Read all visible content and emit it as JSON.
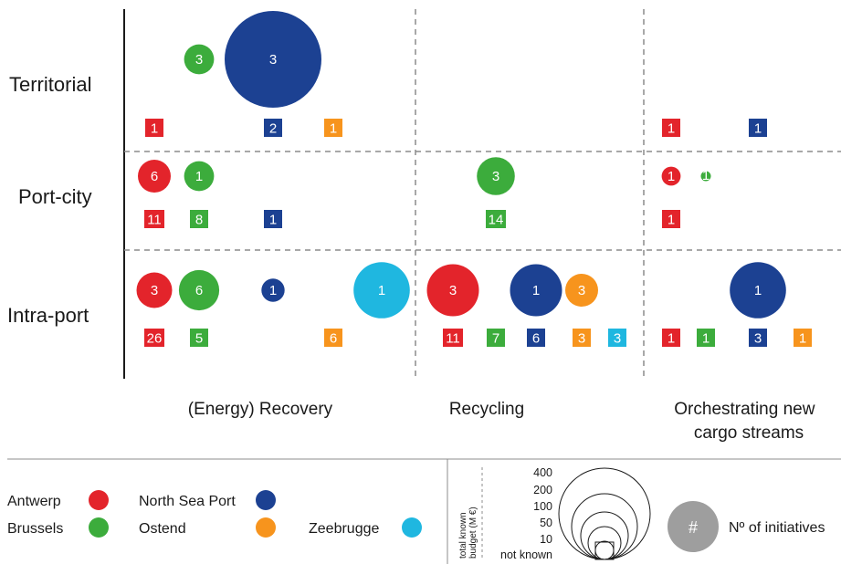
{
  "chart_data": {
    "type": "bubble-matrix",
    "rows": [
      "Territorial",
      "Port-city",
      "Intra-port"
    ],
    "columns": [
      "(Energy) Recovery",
      "Recycling",
      "Orchestrating new cargo streams"
    ],
    "ports": [
      {
        "key": "antwerp",
        "name": "Antwerp",
        "color": "#e3242b"
      },
      {
        "key": "brussels",
        "name": "Brussels",
        "color": "#3cac3c"
      },
      {
        "key": "northsea",
        "name": "North Sea Port",
        "color": "#1c4192"
      },
      {
        "key": "ostend",
        "name": "Ostend",
        "color": "#f7941d"
      },
      {
        "key": "zeebrugge",
        "name": "Zeebrugge",
        "color": "#1fb7e0"
      }
    ],
    "bubbles": [
      {
        "row": "Territorial",
        "column": "(Energy) Recovery",
        "port": "brussels",
        "label": "3",
        "budget_meur": 10
      },
      {
        "row": "Territorial",
        "column": "(Energy) Recovery",
        "port": "northsea",
        "label": "3",
        "budget_meur": 400
      },
      {
        "row": "Port-city",
        "column": "(Energy) Recovery",
        "port": "antwerp",
        "label": "6",
        "budget_meur": 12
      },
      {
        "row": "Port-city",
        "column": "(Energy) Recovery",
        "port": "brussels",
        "label": "1",
        "budget_meur": 10
      },
      {
        "row": "Port-city",
        "column": "Recycling",
        "port": "brussels",
        "label": "3",
        "budget_meur": 16
      },
      {
        "row": "Port-city",
        "column": "Orchestrating new cargo streams",
        "port": "antwerp",
        "label": "1",
        "budget_meur": 4
      },
      {
        "row": "Port-city",
        "column": "Orchestrating new cargo streams",
        "port": "brussels",
        "label": "1",
        "budget_meur": 1
      },
      {
        "row": "Intra-port",
        "column": "(Energy) Recovery",
        "port": "antwerp",
        "label": "3",
        "budget_meur": 14
      },
      {
        "row": "Intra-port",
        "column": "(Energy) Recovery",
        "port": "brussels",
        "label": "6",
        "budget_meur": 18
      },
      {
        "row": "Intra-port",
        "column": "(Energy) Recovery",
        "port": "northsea",
        "label": "1",
        "budget_meur": 6
      },
      {
        "row": "Intra-port",
        "column": "(Energy) Recovery",
        "port": "zeebrugge",
        "label": "1",
        "budget_meur": 35
      },
      {
        "row": "Intra-port",
        "column": "Recycling",
        "port": "antwerp",
        "label": "3",
        "budget_meur": 30
      },
      {
        "row": "Intra-port",
        "column": "Recycling",
        "port": "northsea",
        "label": "1",
        "budget_meur": 30
      },
      {
        "row": "Intra-port",
        "column": "Recycling",
        "port": "ostend",
        "label": "3",
        "budget_meur": 12
      },
      {
        "row": "Intra-port",
        "column": "Orchestrating new cargo streams",
        "port": "northsea",
        "label": "1",
        "budget_meur": 35
      }
    ],
    "squares": [
      {
        "row": "Territorial",
        "column": "(Energy) Recovery",
        "port": "antwerp",
        "value": 1
      },
      {
        "row": "Territorial",
        "column": "(Energy) Recovery",
        "port": "northsea",
        "value": 2
      },
      {
        "row": "Territorial",
        "column": "(Energy) Recovery",
        "port": "ostend",
        "value": 1
      },
      {
        "row": "Territorial",
        "column": "Orchestrating new cargo streams",
        "port": "antwerp",
        "value": 1
      },
      {
        "row": "Territorial",
        "column": "Orchestrating new cargo streams",
        "port": "northsea",
        "value": 1
      },
      {
        "row": "Port-city",
        "column": "(Energy) Recovery",
        "port": "antwerp",
        "value": 11
      },
      {
        "row": "Port-city",
        "column": "(Energy) Recovery",
        "port": "brussels",
        "value": 8
      },
      {
        "row": "Port-city",
        "column": "(Energy) Recovery",
        "port": "northsea",
        "value": 1
      },
      {
        "row": "Port-city",
        "column": "Recycling",
        "port": "brussels",
        "value": 14
      },
      {
        "row": "Port-city",
        "column": "Orchestrating new cargo streams",
        "port": "antwerp",
        "value": 1
      },
      {
        "row": "Intra-port",
        "column": "(Energy) Recovery",
        "port": "antwerp",
        "value": 26
      },
      {
        "row": "Intra-port",
        "column": "(Energy) Recovery",
        "port": "brussels",
        "value": 5
      },
      {
        "row": "Intra-port",
        "column": "(Energy) Recovery",
        "port": "ostend",
        "value": 6
      },
      {
        "row": "Intra-port",
        "column": "Recycling",
        "port": "antwerp",
        "value": 11
      },
      {
        "row": "Intra-port",
        "column": "Recycling",
        "port": "brussels",
        "value": 7
      },
      {
        "row": "Intra-port",
        "column": "Recycling",
        "port": "northsea",
        "value": 6
      },
      {
        "row": "Intra-port",
        "column": "Recycling",
        "port": "ostend",
        "value": 3
      },
      {
        "row": "Intra-port",
        "column": "Recycling",
        "port": "zeebrugge",
        "value": 3
      },
      {
        "row": "Intra-port",
        "column": "Orchestrating new cargo streams",
        "port": "antwerp",
        "value": 1
      },
      {
        "row": "Intra-port",
        "column": "Orchestrating new cargo streams",
        "port": "brussels",
        "value": 1
      },
      {
        "row": "Intra-port",
        "column": "Orchestrating new cargo streams",
        "port": "northsea",
        "value": 3
      },
      {
        "row": "Intra-port",
        "column": "Orchestrating new cargo streams",
        "port": "ostend",
        "value": 1
      }
    ],
    "budget_legend": {
      "label": "total known budget (M €)",
      "levels": [
        "400",
        "200",
        "100",
        "50",
        "10",
        "not known"
      ]
    },
    "initiatives_legend": {
      "symbol": "#",
      "label": "Nº of initiatives",
      "color": "#9e9e9e"
    },
    "grid": "dashed"
  }
}
